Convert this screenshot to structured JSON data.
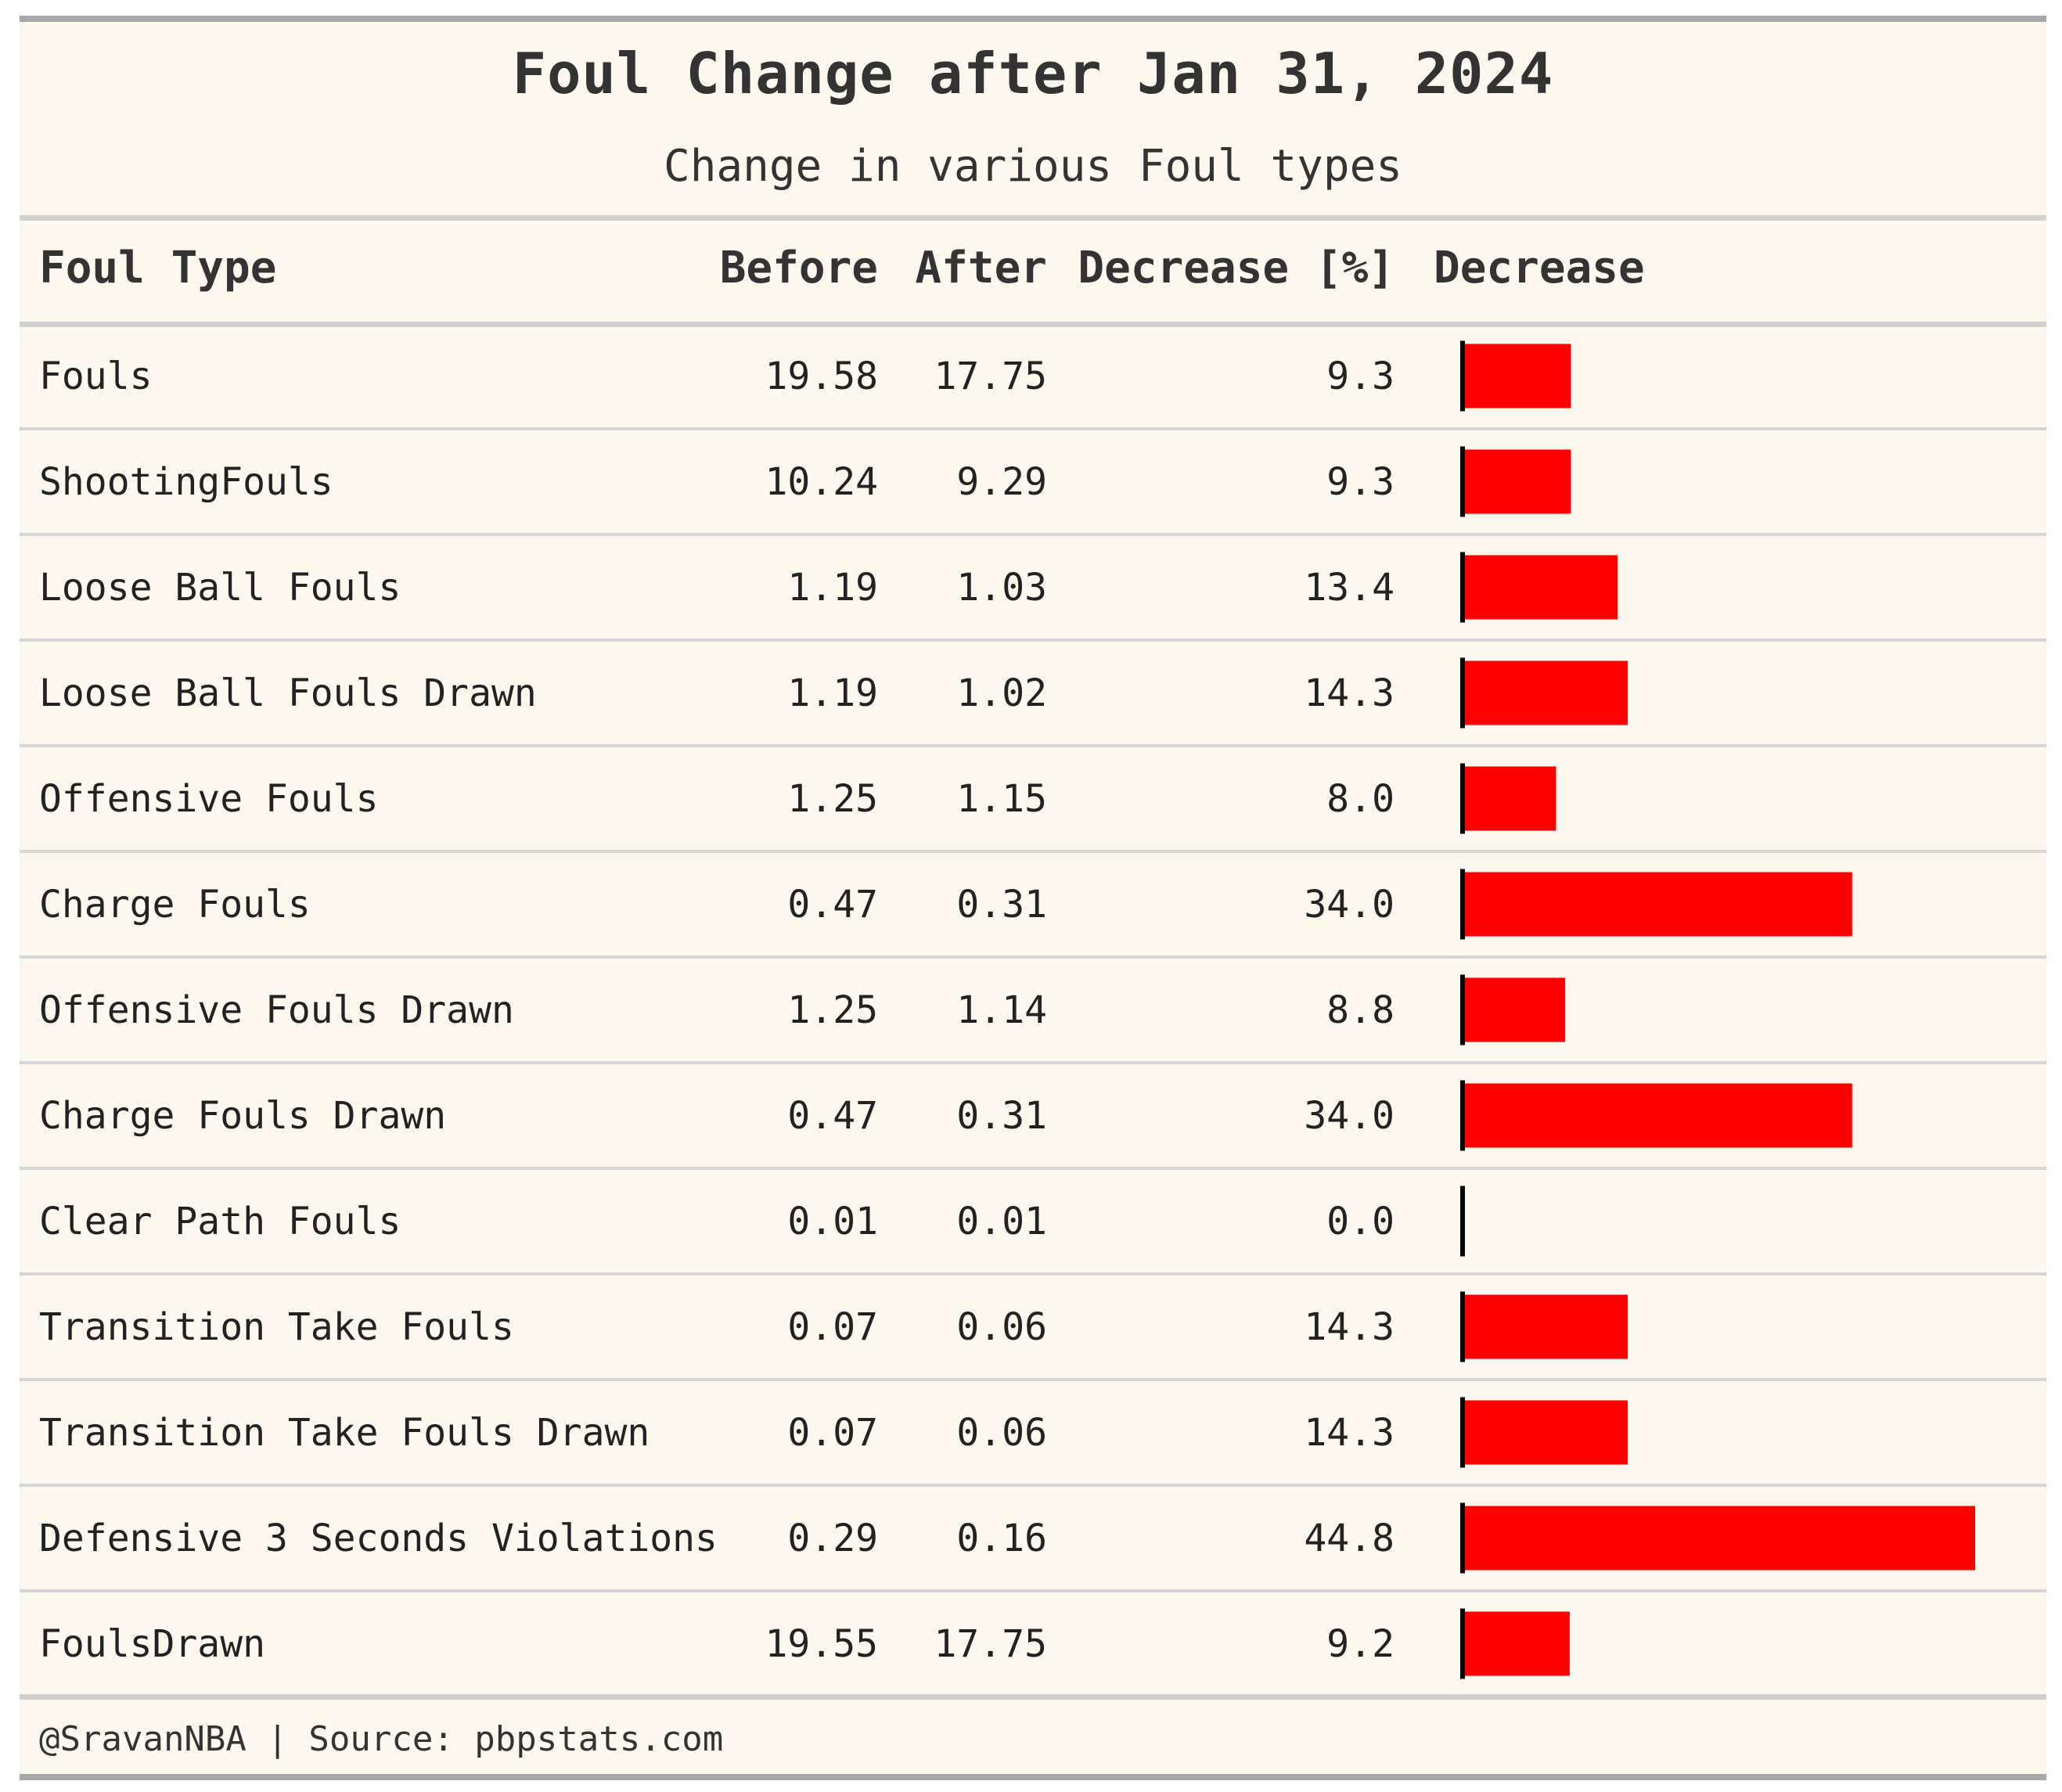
{
  "chart_data": {
    "type": "table",
    "title": "Foul Change after Jan 31, 2024",
    "subtitle": "Change in various Foul types",
    "columns": [
      "Foul Type",
      "Before",
      "After",
      "Decrease [%]",
      "Decrease"
    ],
    "rows": [
      {
        "type": "Fouls",
        "before": "19.58",
        "after": "17.75",
        "decrease": "9.3"
      },
      {
        "type": "ShootingFouls",
        "before": "10.24",
        "after": "9.29",
        "decrease": "9.3"
      },
      {
        "type": "Loose Ball Fouls",
        "before": "1.19",
        "after": "1.03",
        "decrease": "13.4"
      },
      {
        "type": "Loose Ball Fouls Drawn",
        "before": "1.19",
        "after": "1.02",
        "decrease": "14.3"
      },
      {
        "type": "Offensive Fouls",
        "before": "1.25",
        "after": "1.15",
        "decrease": "8.0"
      },
      {
        "type": "Charge Fouls",
        "before": "0.47",
        "after": "0.31",
        "decrease": "34.0"
      },
      {
        "type": "Offensive Fouls Drawn",
        "before": "1.25",
        "after": "1.14",
        "decrease": "8.8"
      },
      {
        "type": "Charge Fouls Drawn",
        "before": "0.47",
        "after": "0.31",
        "decrease": "34.0"
      },
      {
        "type": "Clear Path Fouls",
        "before": "0.01",
        "after": "0.01",
        "decrease": "0.0"
      },
      {
        "type": "Transition Take Fouls",
        "before": "0.07",
        "after": "0.06",
        "decrease": "14.3"
      },
      {
        "type": "Transition Take Fouls Drawn",
        "before": "0.07",
        "after": "0.06",
        "decrease": "14.3"
      },
      {
        "type": "Defensive 3 Seconds Violations",
        "before": "0.29",
        "after": "0.16",
        "decrease": "44.8"
      },
      {
        "type": "FoulsDrawn",
        "before": "19.55",
        "after": "17.75",
        "decrease": "9.2"
      }
    ],
    "bar_max": 44.8,
    "bar_color": "#ff0000",
    "footer": "@SravanNBA | Source: pbpstats.com"
  }
}
